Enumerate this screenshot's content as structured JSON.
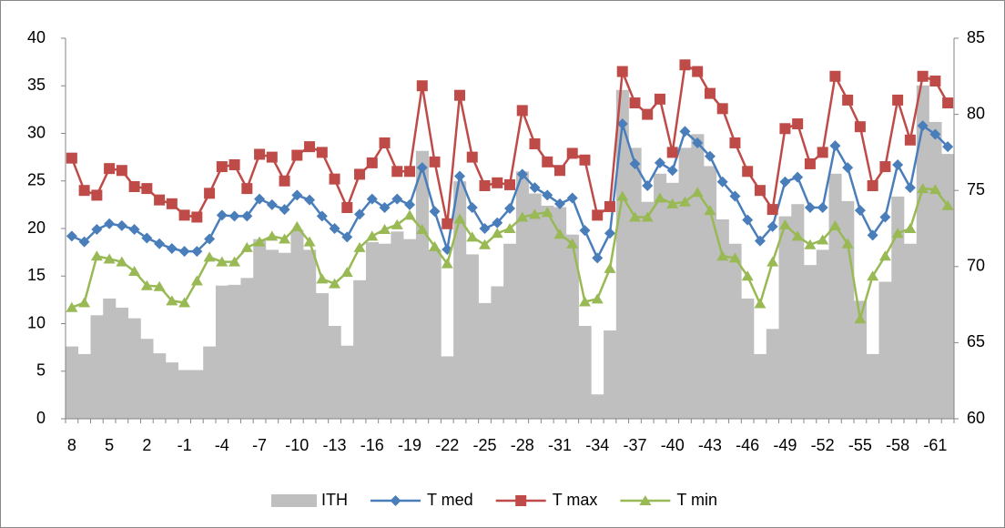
{
  "chart_data": {
    "type": "combo",
    "categories": [
      "8",
      null,
      null,
      "5",
      null,
      null,
      "2",
      null,
      null,
      "-1",
      null,
      null,
      "-4",
      null,
      null,
      "-7",
      null,
      null,
      "-10",
      null,
      null,
      "-13",
      null,
      null,
      "-16",
      null,
      null,
      "-19",
      null,
      null,
      "-22",
      null,
      null,
      "-25",
      null,
      null,
      "-28",
      null,
      null,
      "-31",
      null,
      null,
      "-34",
      null,
      null,
      "-37",
      null,
      null,
      "-40",
      null,
      null,
      "-43",
      null,
      null,
      "-46",
      null,
      null,
      "-49",
      null,
      null,
      "-52",
      null,
      null,
      "-55",
      null,
      null,
      "-58",
      null,
      null,
      "-61",
      null
    ],
    "ylim": [
      0,
      40
    ],
    "yticks": [
      0,
      5,
      10,
      15,
      20,
      25,
      30,
      35,
      40
    ],
    "y2lim": [
      60,
      85
    ],
    "y2ticks": [
      60,
      65,
      70,
      75,
      80,
      85
    ],
    "legend": "bottom",
    "series": [
      {
        "name": "ITH",
        "type": "bar",
        "axis": "y2",
        "color": "#bfbfbf",
        "values": [
          64.75,
          64.25,
          66.8,
          67.9,
          67.3,
          66.6,
          65.25,
          64.3,
          63.7,
          63.2,
          63.2,
          64.75,
          68.75,
          68.8,
          69.25,
          71.8,
          71.1,
          70.9,
          72.4,
          71.1,
          68.25,
          66.1,
          64.8,
          69.1,
          71.6,
          71.5,
          72.3,
          71.8,
          77.6,
          71.1,
          64.1,
          75.6,
          70.8,
          67.6,
          68.7,
          71.5,
          76.25,
          74.8,
          74.0,
          73.9,
          72.1,
          66.1,
          61.6,
          65.8,
          81.6,
          77.8,
          74.25,
          76.1,
          75.5,
          77.8,
          78.7,
          76.6,
          73.1,
          71.5,
          67.9,
          64.25,
          65.9,
          73.3,
          74.1,
          70.1,
          71.1,
          76.1,
          74.3,
          67.75,
          64.25,
          69.0,
          74.6,
          71.5,
          81.9,
          79.5,
          77.4
        ]
      },
      {
        "name": "T med",
        "type": "line",
        "marker": "diamond",
        "color": "#4a7ebb",
        "values": [
          19.2,
          18.6,
          19.9,
          20.5,
          20.3,
          19.9,
          19.0,
          18.4,
          17.9,
          17.6,
          17.6,
          18.9,
          21.4,
          21.3,
          21.3,
          23.1,
          22.5,
          22.0,
          23.5,
          23.0,
          21.3,
          20.0,
          19.1,
          21.5,
          23.1,
          22.2,
          23.1,
          22.5,
          26.4,
          21.8,
          17.8,
          25.5,
          22.2,
          20.0,
          20.6,
          22.1,
          25.7,
          24.3,
          23.5,
          22.6,
          23.2,
          19.8,
          16.9,
          19.5,
          31.0,
          26.8,
          24.5,
          26.9,
          26.1,
          30.2,
          29.0,
          27.6,
          24.9,
          23.4,
          20.9,
          18.7,
          20.2,
          24.9,
          25.4,
          22.2,
          22.2,
          28.7,
          26.4,
          21.9,
          19.3,
          21.2,
          26.7,
          24.3,
          30.8,
          29.9,
          28.6
        ]
      },
      {
        "name": "T max",
        "type": "line",
        "marker": "square",
        "color": "#be4b48",
        "values": [
          27.4,
          24.0,
          23.5,
          26.3,
          26.1,
          24.4,
          24.2,
          23.0,
          22.6,
          21.4,
          21.2,
          23.7,
          26.5,
          26.7,
          24.2,
          27.8,
          27.5,
          25.0,
          27.7,
          28.6,
          28.0,
          25.2,
          22.2,
          25.7,
          26.9,
          29.0,
          26.0,
          26.0,
          35.0,
          27.0,
          20.5,
          34.0,
          27.5,
          24.5,
          24.8,
          24.6,
          32.4,
          28.9,
          27.0,
          26.1,
          27.9,
          27.2,
          21.4,
          22.3,
          36.5,
          33.2,
          32.0,
          33.6,
          28.0,
          37.2,
          36.5,
          34.2,
          32.6,
          29.0,
          26.0,
          24.0,
          22.0,
          30.5,
          31.0,
          26.8,
          28.0,
          36.0,
          33.5,
          30.7,
          24.5,
          26.5,
          33.5,
          29.3,
          36.0,
          35.5,
          33.2
        ]
      },
      {
        "name": "T min",
        "type": "line",
        "marker": "triangle",
        "color": "#98b954",
        "values": [
          11.7,
          12.2,
          17.1,
          16.8,
          16.5,
          15.5,
          14.0,
          13.9,
          12.4,
          12.2,
          14.5,
          17.0,
          16.5,
          16.5,
          18.0,
          18.6,
          19.2,
          18.9,
          20.2,
          18.6,
          14.7,
          14.2,
          15.4,
          18.0,
          19.2,
          19.9,
          20.4,
          21.4,
          19.9,
          18.1,
          16.3,
          21.0,
          19.1,
          18.3,
          19.5,
          20.0,
          21.2,
          21.5,
          21.7,
          19.4,
          18.4,
          12.3,
          12.6,
          15.8,
          23.4,
          21.2,
          21.2,
          23.2,
          22.6,
          22.8,
          23.8,
          21.9,
          17.1,
          16.9,
          15.0,
          12.1,
          16.5,
          20.4,
          19.2,
          18.3,
          18.8,
          20.3,
          18.4,
          10.5,
          15.0,
          17.1,
          19.5,
          20.0,
          24.2,
          24.1,
          22.4
        ]
      }
    ]
  }
}
